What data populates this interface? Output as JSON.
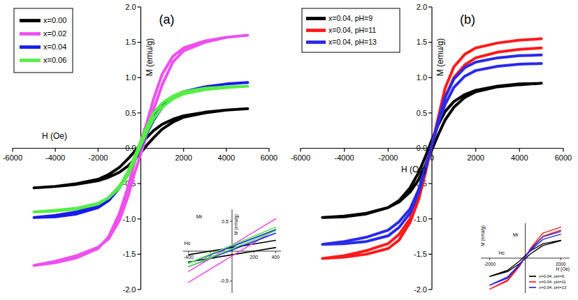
{
  "chart_data": [
    {
      "type": "line",
      "title": "(a)",
      "x_label": "H (Oe)",
      "y_label": "M (emu/g)",
      "xlim": [
        -6000,
        6000
      ],
      "ylim": [
        -2,
        2
      ],
      "xticks": [
        -6000,
        -4000,
        -2000,
        2000,
        4000,
        6000
      ],
      "yticks": [
        {
          "value": 2,
          "label": "2.0"
        },
        1.5,
        {
          "value": 1,
          "label": "1.0"
        },
        0.5,
        {
          "value": 0,
          "label": "0.0"
        },
        -0.5,
        {
          "value": -1,
          "label": "-1.0"
        },
        -1.5,
        {
          "value": -2,
          "label": "-2.0"
        }
      ],
      "legend": "upper left",
      "series": [
        {
          "name": "x=0.00",
          "color": "#000000",
          "x": [
            5000,
            4000,
            3000,
            2000,
            1500,
            1000,
            600,
            300,
            0,
            -300,
            -600,
            -1000,
            -1500,
            -2000,
            -3000,
            -4000,
            -5000,
            -4000,
            -3000,
            -2000,
            -1500,
            -1000,
            -600,
            -300,
            0,
            300,
            600,
            1000,
            1500,
            2000,
            3000,
            4000,
            5000
          ],
          "values": [
            0.56,
            0.54,
            0.51,
            0.46,
            0.41,
            0.34,
            0.25,
            0.16,
            0.06,
            -0.05,
            -0.15,
            -0.27,
            -0.37,
            -0.44,
            -0.5,
            -0.54,
            -0.56,
            -0.54,
            -0.51,
            -0.46,
            -0.41,
            -0.34,
            -0.25,
            -0.16,
            -0.06,
            0.05,
            0.15,
            0.27,
            0.37,
            0.44,
            0.5,
            0.54,
            0.56
          ]
        },
        {
          "name": "x=0.02",
          "color": "#ee4fee",
          "x": [
            5000,
            4000,
            3000,
            2000,
            1500,
            1000,
            600,
            300,
            0,
            -300,
            -600,
            -1000,
            -1500,
            -2000,
            -3000,
            -4000,
            -5000,
            -4000,
            -3000,
            -2000,
            -1500,
            -1000,
            -600,
            -300,
            0,
            300,
            600,
            1000,
            1500,
            2000,
            3000,
            4000,
            5000
          ],
          "values": [
            1.6,
            1.57,
            1.52,
            1.42,
            1.3,
            1.05,
            0.7,
            0.38,
            0.1,
            -0.2,
            -0.55,
            -0.92,
            -1.25,
            -1.42,
            -1.55,
            -1.62,
            -1.66,
            -1.6,
            -1.52,
            -1.4,
            -1.28,
            -1.02,
            -0.68,
            -0.36,
            -0.08,
            0.22,
            0.55,
            0.9,
            1.22,
            1.38,
            1.5,
            1.57,
            1.6
          ]
        },
        {
          "name": "x=0.04",
          "color": "#1a1aee",
          "x": [
            5000,
            4000,
            3000,
            2000,
            1500,
            1000,
            600,
            300,
            0,
            -300,
            -600,
            -1000,
            -1500,
            -2000,
            -3000,
            -4000,
            -5000,
            -4000,
            -3000,
            -2000,
            -1500,
            -1000,
            -600,
            -300,
            0,
            300,
            600,
            1000,
            1500,
            2000,
            3000,
            4000,
            5000
          ],
          "values": [
            0.93,
            0.91,
            0.87,
            0.8,
            0.73,
            0.62,
            0.46,
            0.28,
            0.08,
            -0.14,
            -0.35,
            -0.56,
            -0.74,
            -0.84,
            -0.93,
            -0.97,
            -0.98,
            -0.95,
            -0.9,
            -0.8,
            -0.7,
            -0.54,
            -0.36,
            -0.18,
            0.02,
            0.22,
            0.4,
            0.58,
            0.72,
            0.8,
            0.87,
            0.91,
            0.93
          ]
        },
        {
          "name": "x=0.06",
          "color": "#55ee44",
          "x": [
            5000,
            4000,
            3000,
            2000,
            1500,
            1000,
            600,
            300,
            0,
            -300,
            -600,
            -1000,
            -1500,
            -2000,
            -3000,
            -4000,
            -5000,
            -4000,
            -3000,
            -2000,
            -1500,
            -1000,
            -600,
            -300,
            0,
            300,
            600,
            1000,
            1500,
            2000,
            3000,
            4000,
            5000
          ],
          "values": [
            0.88,
            0.87,
            0.85,
            0.8,
            0.74,
            0.64,
            0.5,
            0.32,
            0.1,
            -0.12,
            -0.33,
            -0.54,
            -0.7,
            -0.79,
            -0.86,
            -0.89,
            -0.9,
            -0.88,
            -0.85,
            -0.78,
            -0.7,
            -0.56,
            -0.38,
            -0.18,
            0.04,
            0.24,
            0.42,
            0.58,
            0.7,
            0.77,
            0.83,
            0.86,
            0.88
          ]
        }
      ]
    },
    {
      "type": "line",
      "title": "(b)",
      "x_label": "H (Oe)",
      "y_label": "M (emu/g)",
      "xlim": [
        -6000,
        6000
      ],
      "ylim": [
        -2,
        2
      ],
      "xticks": [
        -6000,
        -4000,
        -2000,
        0,
        2000,
        4000,
        6000
      ],
      "yticks": [
        {
          "value": 2,
          "label": "2.0"
        },
        1.5,
        {
          "value": 1,
          "label": "1.0"
        },
        0.5,
        {
          "value": 0,
          "label": "0.0"
        },
        -0.5,
        {
          "value": -1,
          "label": "-1.0"
        },
        -1.5,
        {
          "value": -2,
          "label": "-2.0"
        }
      ],
      "legend": "upper left",
      "series": [
        {
          "name": "x=0.04, pH=9",
          "color": "#000000",
          "x": [
            5000,
            4000,
            3000,
            2000,
            1500,
            1000,
            600,
            300,
            0,
            -300,
            -600,
            -1000,
            -1500,
            -2000,
            -3000,
            -4000,
            -5000,
            -4000,
            -3000,
            -2000,
            -1500,
            -1000,
            -600,
            -300,
            0,
            300,
            600,
            1000,
            1500,
            2000,
            3000,
            4000,
            5000
          ],
          "values": [
            0.92,
            0.91,
            0.88,
            0.82,
            0.76,
            0.66,
            0.52,
            0.34,
            0.12,
            -0.12,
            -0.34,
            -0.56,
            -0.74,
            -0.84,
            -0.93,
            -0.97,
            -0.98,
            -0.96,
            -0.92,
            -0.84,
            -0.76,
            -0.62,
            -0.44,
            -0.24,
            -0.02,
            0.2,
            0.4,
            0.58,
            0.72,
            0.8,
            0.87,
            0.9,
            0.92
          ]
        },
        {
          "name": "x=0.04, pH=11",
          "color": "#ff1a1a",
          "x": [
            5000,
            4000,
            3000,
            2000,
            1500,
            1000,
            600,
            300,
            0,
            -300,
            -600,
            -1000,
            -1500,
            -2000,
            -3000,
            -4000,
            -5000,
            -4000,
            -3000,
            -2000,
            -1500,
            -1000,
            -600,
            -300,
            0,
            300,
            600,
            1000,
            1500,
            2000,
            3000,
            4000,
            5000
          ],
          "values": [
            1.55,
            1.53,
            1.49,
            1.42,
            1.33,
            1.15,
            0.85,
            0.45,
            0.05,
            -0.35,
            -0.72,
            -1.05,
            -1.3,
            -1.42,
            -1.5,
            -1.54,
            -1.56,
            -1.52,
            -1.45,
            -1.35,
            -1.22,
            -1.0,
            -0.68,
            -0.3,
            0.05,
            0.42,
            0.72,
            1.0,
            1.18,
            1.28,
            1.36,
            1.4,
            1.42
          ]
        },
        {
          "name": "x=0.04, pH=13",
          "color": "#2a2ae8",
          "x": [
            5000,
            4000,
            3000,
            2000,
            1500,
            1000,
            600,
            300,
            0,
            -300,
            -600,
            -1000,
            -1500,
            -2000,
            -3000,
            -4000,
            -5000,
            -4000,
            -3000,
            -2000,
            -1500,
            -1000,
            -600,
            -300,
            0,
            300,
            600,
            1000,
            1500,
            2000,
            3000,
            4000,
            5000
          ],
          "values": [
            1.32,
            1.31,
            1.28,
            1.22,
            1.14,
            0.98,
            0.72,
            0.4,
            0.05,
            -0.3,
            -0.62,
            -0.92,
            -1.12,
            -1.24,
            -1.32,
            -1.35,
            -1.36,
            -1.32,
            -1.26,
            -1.16,
            -1.04,
            -0.86,
            -0.58,
            -0.26,
            0.05,
            0.36,
            0.62,
            0.86,
            1.02,
            1.1,
            1.16,
            1.19,
            1.2
          ]
        }
      ]
    },
    {
      "type": "line",
      "y_label": "M (emu/g)",
      "xlim": [
        -450,
        450
      ],
      "ylim": [
        -0.7,
        0.7
      ],
      "xticks": [
        -400,
        -200,
        200,
        400
      ],
      "yticks": [
        0.5,
        -0.5
      ],
      "annotations": [
        {
          "text": "Mr",
          "x": -330,
          "y": 0.55
        },
        {
          "text": "Hc",
          "x": -440,
          "y": 0.1
        }
      ],
      "series": [
        {
          "name": "x=0.00",
          "color": "#000000",
          "x": [
            400,
            200,
            0,
            -200,
            -400,
            null,
            -400,
            -200,
            0,
            200,
            400
          ],
          "values": [
            0.18,
            0.12,
            0.06,
            0.0,
            -0.06,
            null,
            -0.18,
            -0.12,
            -0.06,
            0.0,
            0.06
          ]
        },
        {
          "name": "x=0.02",
          "color": "#ee4fee",
          "x": [
            400,
            200,
            0,
            -200,
            -400,
            null,
            -400,
            -200,
            0,
            200,
            400
          ],
          "values": [
            0.54,
            0.32,
            0.1,
            -0.12,
            -0.34,
            null,
            -0.52,
            -0.3,
            -0.08,
            0.14,
            0.36
          ]
        },
        {
          "name": "x=0.04",
          "color": "#1a1aee",
          "x": [
            400,
            200,
            0,
            -200,
            -400,
            null,
            -400,
            -200,
            0,
            200,
            400
          ],
          "values": [
            0.36,
            0.22,
            0.08,
            -0.06,
            -0.2,
            null,
            -0.26,
            -0.12,
            0.02,
            0.16,
            0.3
          ]
        },
        {
          "name": "x=0.06",
          "color": "#55ee44",
          "x": [
            400,
            200,
            0,
            -200,
            -400,
            null,
            -400,
            -200,
            0,
            200,
            400
          ],
          "values": [
            0.4,
            0.25,
            0.1,
            -0.05,
            -0.2,
            null,
            -0.26,
            -0.11,
            0.04,
            0.19,
            0.34
          ]
        }
      ]
    },
    {
      "type": "line",
      "x_label": "H (Oe)",
      "y_label": "M (emu/g)",
      "xlim": [
        -2500,
        2500
      ],
      "ylim": [
        -1.6,
        1.6
      ],
      "xticks": [
        -2000,
        2000
      ],
      "legend": "lower right",
      "annotations": [
        {
          "text": "Mr",
          "x": -700,
          "y": 1.0
        },
        {
          "text": "Hc",
          "x": -1500,
          "y": 0.15
        }
      ],
      "series": [
        {
          "name": "x=0.04, pH=9",
          "color": "#000000",
          "x": [
            2000,
            1000,
            300,
            0,
            -300,
            -1000,
            -2000,
            -1000,
            -300,
            0,
            300,
            1000,
            2000
          ],
          "values": [
            0.82,
            0.66,
            0.34,
            0.12,
            -0.12,
            -0.56,
            -0.84,
            -0.62,
            -0.24,
            -0.02,
            0.2,
            0.58,
            0.8
          ]
        },
        {
          "name": "x=0.04, pH=11",
          "color": "#ff1a1a",
          "x": [
            2000,
            1000,
            300,
            0,
            -300,
            -1000,
            -2000,
            -1000,
            -300,
            0,
            300,
            1000,
            2000
          ],
          "values": [
            1.42,
            1.15,
            0.45,
            0.05,
            -0.35,
            -1.05,
            -1.42,
            -1.0,
            -0.3,
            0.05,
            0.42,
            1.0,
            1.28
          ]
        },
        {
          "name": "x=0.04, pH=13",
          "color": "#2a2ae8",
          "x": [
            2000,
            1000,
            300,
            0,
            -300,
            -1000,
            -2000,
            -1000,
            -300,
            0,
            300,
            1000,
            2000
          ],
          "values": [
            1.22,
            0.98,
            0.4,
            0.05,
            -0.3,
            -0.92,
            -1.24,
            -0.86,
            -0.26,
            0.05,
            0.36,
            0.86,
            1.1
          ]
        }
      ]
    }
  ]
}
